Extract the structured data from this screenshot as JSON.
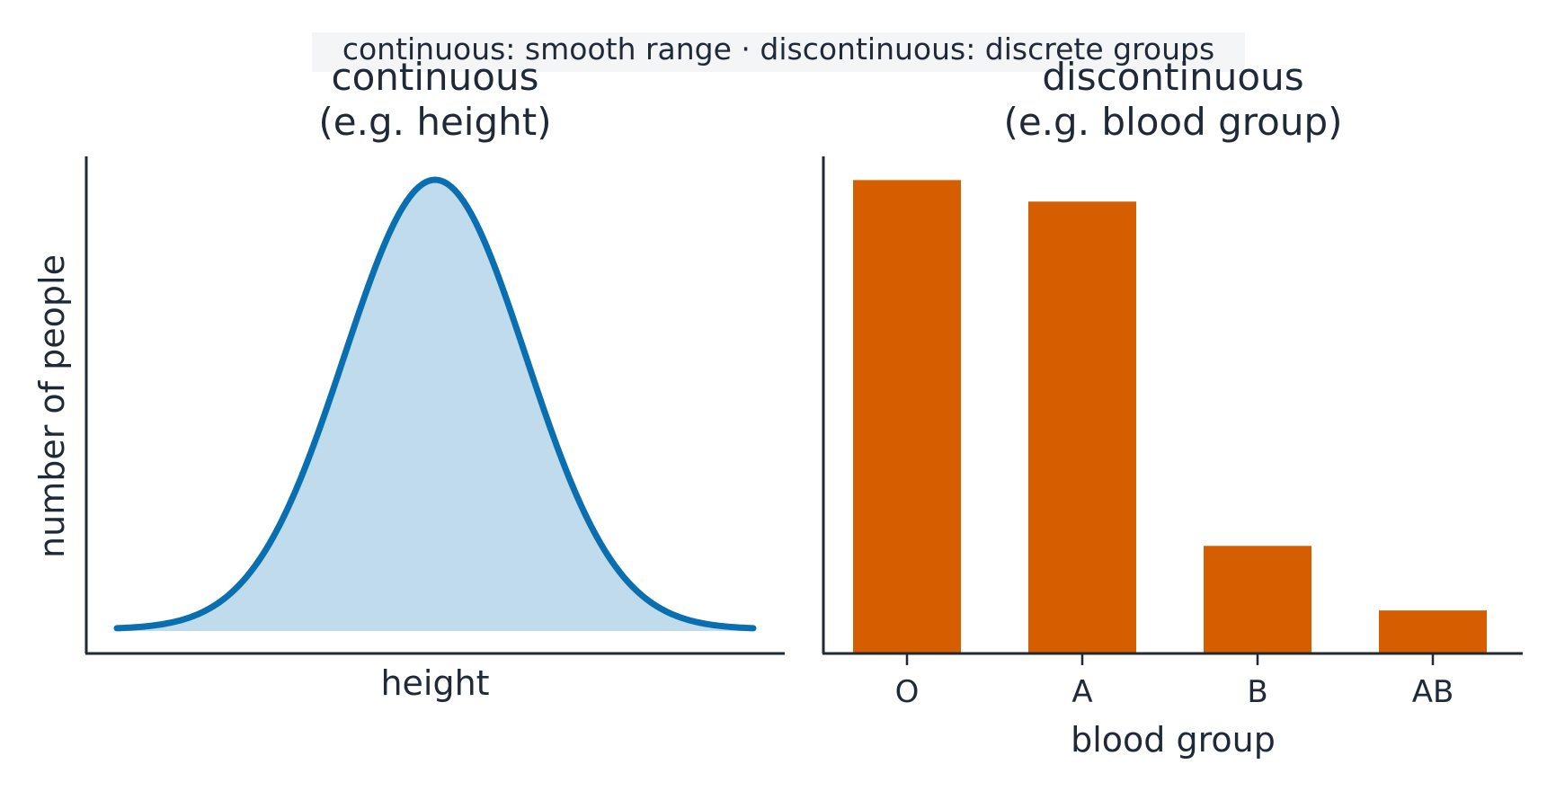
{
  "banner": "continuous: smooth range  ·  discontinuous: discrete groups",
  "chart_data": [
    {
      "type": "area",
      "title": "continuous\n(e.g. height)",
      "xlabel": "height",
      "ylabel": "number of people",
      "x_ticks": "none",
      "y_ticks": "none",
      "grid": false,
      "curve": "normal",
      "x": [
        -3.5,
        -3.0,
        -2.5,
        -2.0,
        -1.5,
        -1.0,
        -0.5,
        0.0,
        0.5,
        1.0,
        1.5,
        2.0,
        2.5,
        3.0,
        3.5
      ],
      "y": [
        0.002,
        0.011,
        0.044,
        0.135,
        0.325,
        0.607,
        0.882,
        1.0,
        0.882,
        0.607,
        0.325,
        0.135,
        0.044,
        0.011,
        0.002
      ],
      "colors": {
        "line": "#0a6fb0",
        "fill": "#c0dbec"
      }
    },
    {
      "type": "bar",
      "title": "discontinuous\n(e.g. blood group)",
      "xlabel": "blood group",
      "ylabel": "",
      "categories": [
        "O",
        "A",
        "B",
        "AB"
      ],
      "values": [
        44,
        42,
        10,
        4
      ],
      "ylim": [
        0,
        46.2
      ],
      "grid": false,
      "colors": {
        "bar": "#d55e00"
      }
    }
  ]
}
